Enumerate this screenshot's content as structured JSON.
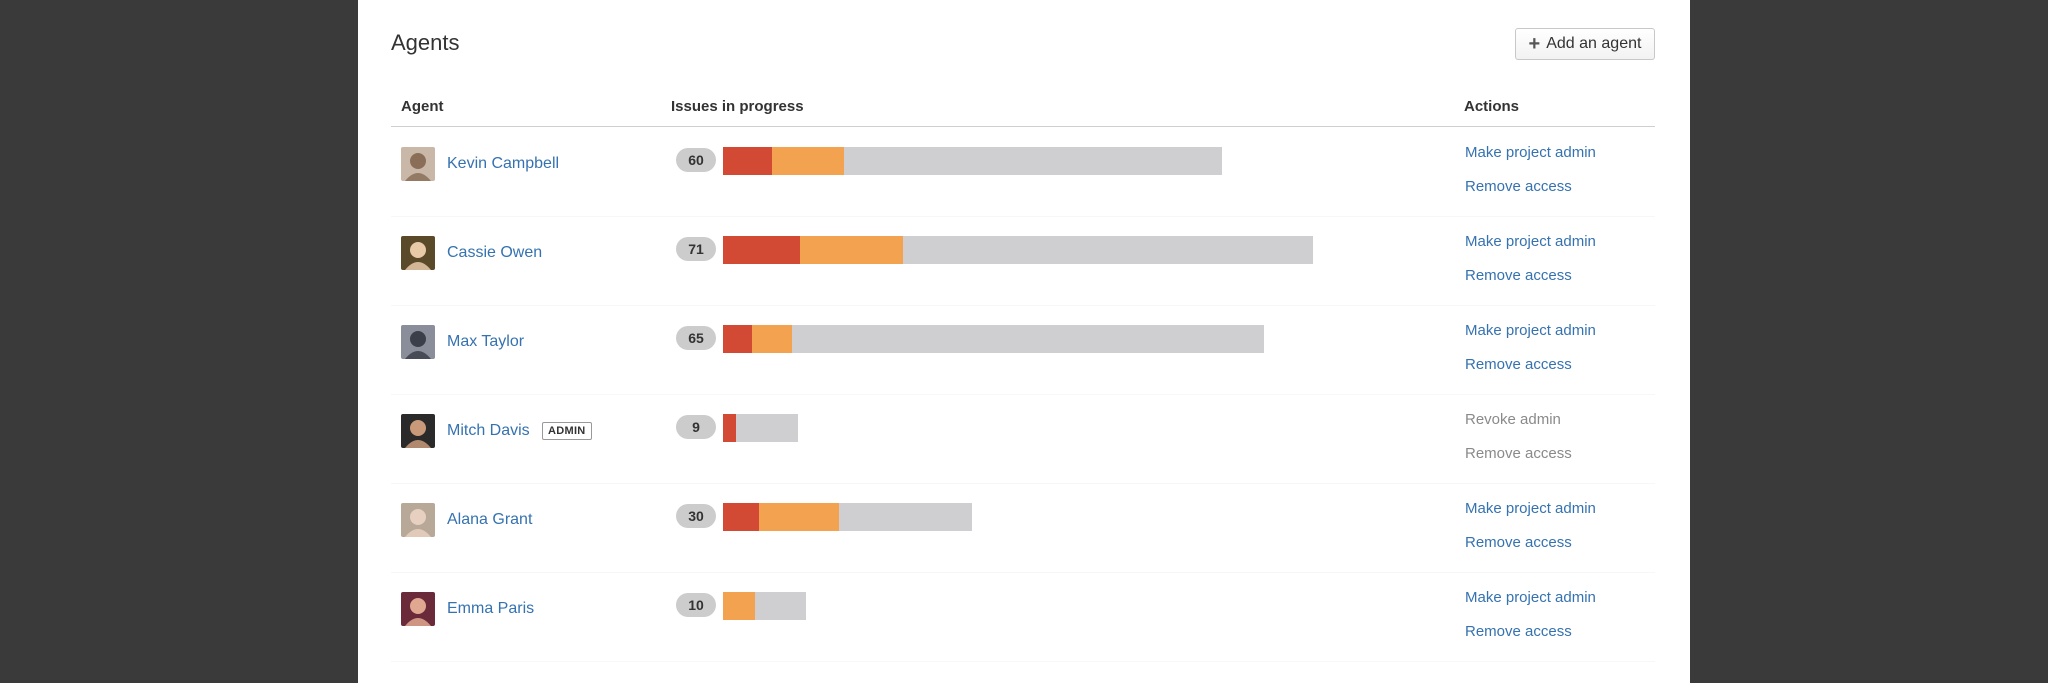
{
  "page": {
    "title": "Agents"
  },
  "toolbar": {
    "add_label": "Add an agent"
  },
  "table": {
    "headers": {
      "agent": "Agent",
      "issues": "Issues in progress",
      "actions": "Actions"
    },
    "max_issues": 76,
    "rows": [
      {
        "name": "Kevin Campbell",
        "count": "60",
        "issues": 60,
        "red": 9.8,
        "orange": 14.4,
        "badge": "",
        "action1": "Make project admin",
        "action2": "Remove access",
        "disabled": false,
        "avatar_bg": "#c9b8a8",
        "avatar_fg": "#8a6e58"
      },
      {
        "name": "Cassie Owen",
        "count": "71",
        "issues": 71,
        "red": 13.0,
        "orange": 17.5,
        "badge": "",
        "action1": "Make project admin",
        "action2": "Remove access",
        "disabled": false,
        "avatar_bg": "#5a4a2a",
        "avatar_fg": "#e8c9a8"
      },
      {
        "name": "Max Taylor",
        "count": "65",
        "issues": 65,
        "red": 5.4,
        "orange": 7.4,
        "badge": "",
        "action1": "Make project admin",
        "action2": "Remove access",
        "disabled": false,
        "avatar_bg": "#8a8e9a",
        "avatar_fg": "#3a3f4a"
      },
      {
        "name": "Mitch Davis",
        "count": "9",
        "issues": 9,
        "red": 17.7,
        "orange": 0,
        "badge": "ADMIN",
        "action1": "Revoke admin",
        "action2": "Remove access",
        "disabled": true,
        "avatar_bg": "#2a2a2a",
        "avatar_fg": "#c89a7a"
      },
      {
        "name": "Alana Grant",
        "count": "30",
        "issues": 30,
        "red": 14.5,
        "orange": 32.0,
        "badge": "",
        "action1": "Make project admin",
        "action2": "Remove access",
        "disabled": false,
        "avatar_bg": "#b8a898",
        "avatar_fg": "#e8d0c0"
      },
      {
        "name": "Emma Paris",
        "count": "10",
        "issues": 10,
        "red": 0,
        "orange": 38.7,
        "badge": "",
        "action1": "Make project admin",
        "action2": "Remove access",
        "disabled": false,
        "avatar_bg": "#6a2a3a",
        "avatar_fg": "#e0a890"
      }
    ]
  },
  "colors": {
    "link": "#3572b0",
    "red": "#d24a34",
    "orange": "#f3a250",
    "track": "#cfcfd2"
  },
  "icons": {
    "add": "plus-icon",
    "avatar": "user-avatar-icon"
  }
}
